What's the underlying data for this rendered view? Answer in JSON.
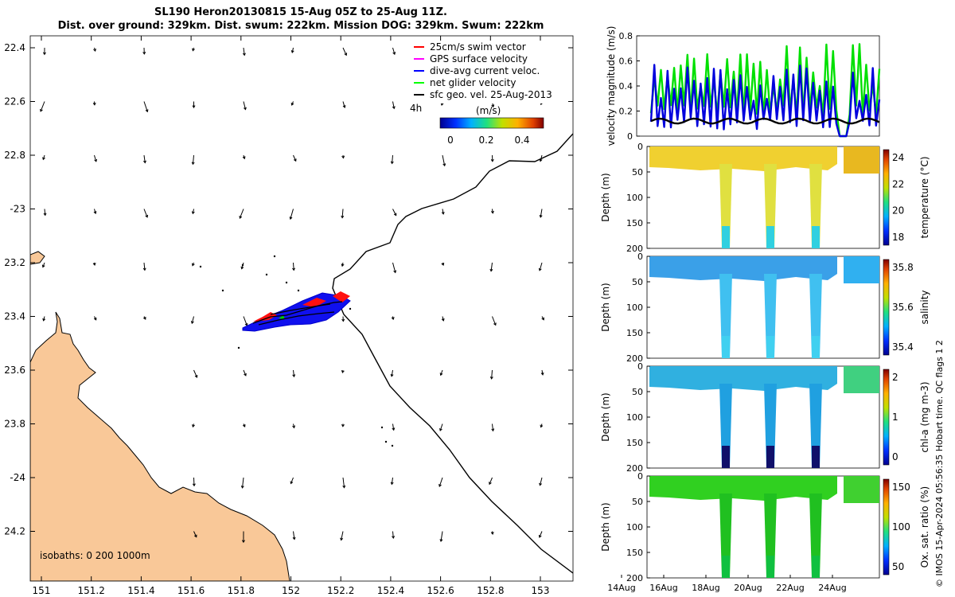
{
  "title": {
    "line1": "SL190 Heron20130815 15-Aug 05Z to 25-Aug 11Z.",
    "line2": "Dist. over ground: 329km. Dist. swum: 222km. Mission DOG: 329km. Swum: 222km"
  },
  "map": {
    "lon_ticks": [
      "151",
      "151.2",
      "151.4",
      "151.6",
      "151.8",
      "152",
      "152.2",
      "152.4",
      "152.6",
      "152.8",
      "153"
    ],
    "lat_ticks": [
      "22.4",
      "22.6",
      "22.8",
      "-23",
      "23.2",
      "23.4",
      "23.6",
      "23.8",
      "-24",
      "24.2"
    ],
    "isobaths_label": "isobaths: 0   200   1000m",
    "legend": [
      {
        "label": "25cm/s swim vector",
        "color": "#ff0000"
      },
      {
        "label": "GPS surface velocity",
        "color": "#ff00ff"
      },
      {
        "label": "dive-avg current veloc.",
        "color": "#0000ff"
      },
      {
        "label": "net glider velocity",
        "color": "#00ff00"
      },
      {
        "label": "sfc geo. vel. 25-Aug-2013",
        "color": "#000000"
      }
    ],
    "scale_label": "4h",
    "colorbar_title": "(m/s)",
    "colorbar_ticks": [
      "0",
      "0.2",
      "0.4"
    ],
    "land_color": "#f9c898",
    "swim_color": "#ff0000",
    "current_color": "#0000ff",
    "track_color": "#000000"
  },
  "velocity_panel": {
    "ylabel": "velocity magnitude (m/s)",
    "yticks": [
      "0",
      "0.2",
      "0.4",
      "0.6",
      "0.8"
    ],
    "series": [
      {
        "name": "net glider velocity",
        "color": "#00e000"
      },
      {
        "name": "dive-avg current veloc.",
        "color": "#0000dd"
      },
      {
        "name": "sfc geo. vel.",
        "color": "#000000"
      }
    ]
  },
  "profiles": {
    "depth_label": "Depth (m)",
    "depth_ticks": [
      "0",
      "50",
      "100",
      "150",
      "200"
    ],
    "panels": [
      {
        "label": "temperature (°C)",
        "ticks": [
          "18",
          "20",
          "22",
          "24"
        ]
      },
      {
        "label": "salinity",
        "ticks": [
          "35.4",
          "35.6",
          "35.8"
        ]
      },
      {
        "label": "chl-a (mg m-3)",
        "ticks": [
          "0",
          "1",
          "2"
        ]
      },
      {
        "label": "Ox. sat. ratio (%)",
        "ticks": [
          "50",
          "100",
          "150"
        ]
      }
    ],
    "date_ticks": [
      "14Aug",
      "16Aug",
      "18Aug",
      "20Aug",
      "22Aug",
      "24Aug"
    ]
  },
  "credit": "© IMOS 15-Apr-2024 05:56:35 Hobart time. QC flags 1  2"
}
